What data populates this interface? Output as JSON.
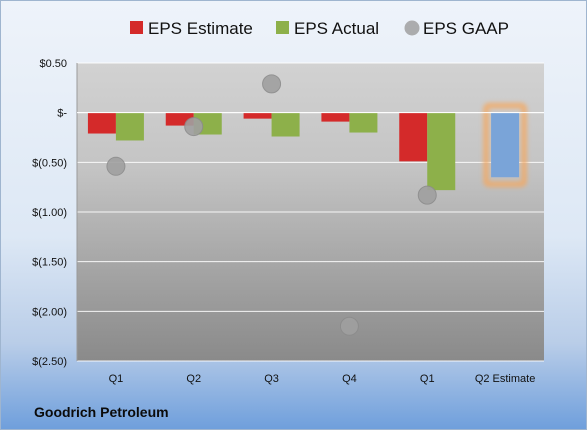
{
  "company": "Goodrich Petroleum",
  "chart_data": {
    "type": "bar",
    "categories": [
      "Q1",
      "Q2",
      "Q3",
      "Q4",
      "Q1",
      "Q2 Estimate"
    ],
    "series": [
      {
        "name": "EPS Estimate",
        "type": "bar",
        "color": "#d42a2a",
        "values": [
          -0.21,
          -0.13,
          -0.06,
          -0.09,
          -0.49,
          null
        ]
      },
      {
        "name": "EPS Actual",
        "type": "bar",
        "color": "#8db04a",
        "values": [
          -0.28,
          -0.22,
          -0.24,
          -0.2,
          -0.78,
          -0.65
        ]
      },
      {
        "name": "EPS GAAP",
        "type": "scatter",
        "color": "#a0a0a0",
        "values": [
          -0.54,
          -0.14,
          0.29,
          -2.15,
          -0.83,
          null
        ]
      }
    ],
    "highlight": {
      "category": "Q2 Estimate",
      "color": "#7aa4d8",
      "glow": "#f4a860"
    },
    "yticks": [
      "$0.50",
      "$-",
      "$(0.50)",
      "$(1.00)",
      "$(1.50)",
      "$(2.00)",
      "$(2.50)"
    ],
    "ylim": [
      -2.5,
      0.5
    ],
    "grid": true,
    "legend_position": "top"
  }
}
